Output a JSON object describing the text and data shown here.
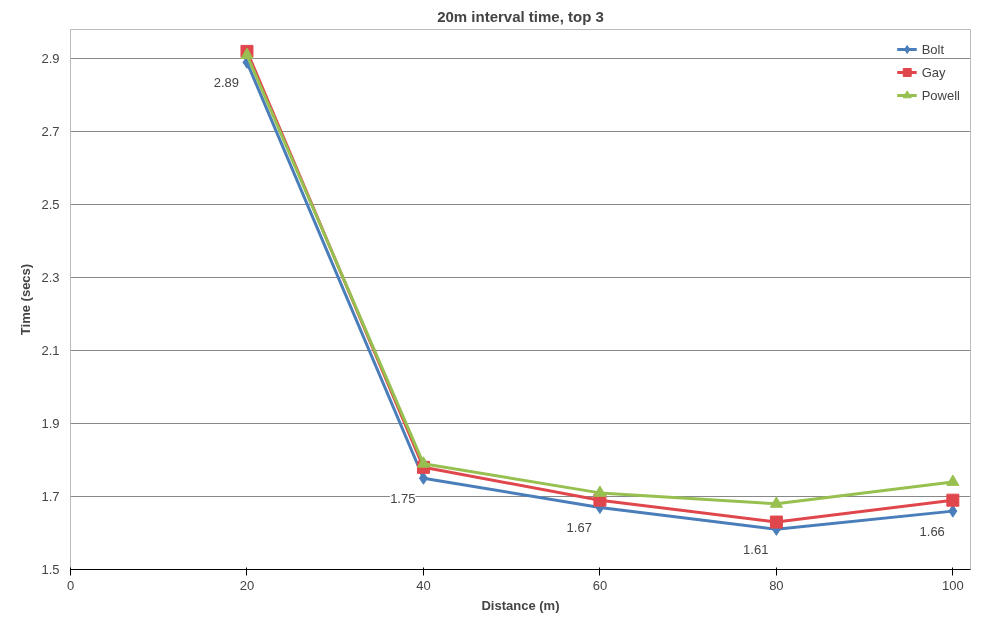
{
  "chart_data": {
    "type": "line",
    "title": "20m interval time, top 3",
    "xlabel": "Distance (m)",
    "ylabel": "Time (secs)",
    "x": [
      20,
      40,
      60,
      80,
      100
    ],
    "series": [
      {
        "name": "Bolt",
        "color": "#4a7ebb",
        "marker": "diamond",
        "values": [
          2.89,
          1.75,
          1.67,
          1.61,
          1.66
        ],
        "value_labels": [
          "2.89",
          "1.75",
          "1.67",
          "1.61",
          "1.66"
        ]
      },
      {
        "name": "Gay",
        "color": "#e0474c",
        "marker": "square",
        "values": [
          2.92,
          1.78,
          1.69,
          1.63,
          1.69
        ]
      },
      {
        "name": "Powell",
        "color": "#98c050",
        "marker": "triangle",
        "values": [
          2.91,
          1.79,
          1.71,
          1.68,
          1.74
        ]
      }
    ],
    "xlim": [
      0,
      102
    ],
    "xticks": [
      0,
      20,
      40,
      60,
      80,
      100
    ],
    "ylim": [
      1.5,
      2.98
    ],
    "yticks": [
      {
        "value": 1.5,
        "label": "1.5"
      },
      {
        "value": 1.7,
        "label": "1.7"
      },
      {
        "value": 1.9,
        "label": "1.9"
      },
      {
        "value": 2.1,
        "label": "2.1"
      },
      {
        "value": 2.3,
        "label": "2.3"
      },
      {
        "value": 2.5,
        "label": "2.5"
      },
      {
        "value": 2.7,
        "label": "2.7"
      },
      {
        "value": 2.9,
        "label": "2.9"
      }
    ],
    "grid": "y",
    "legend": "top right"
  }
}
